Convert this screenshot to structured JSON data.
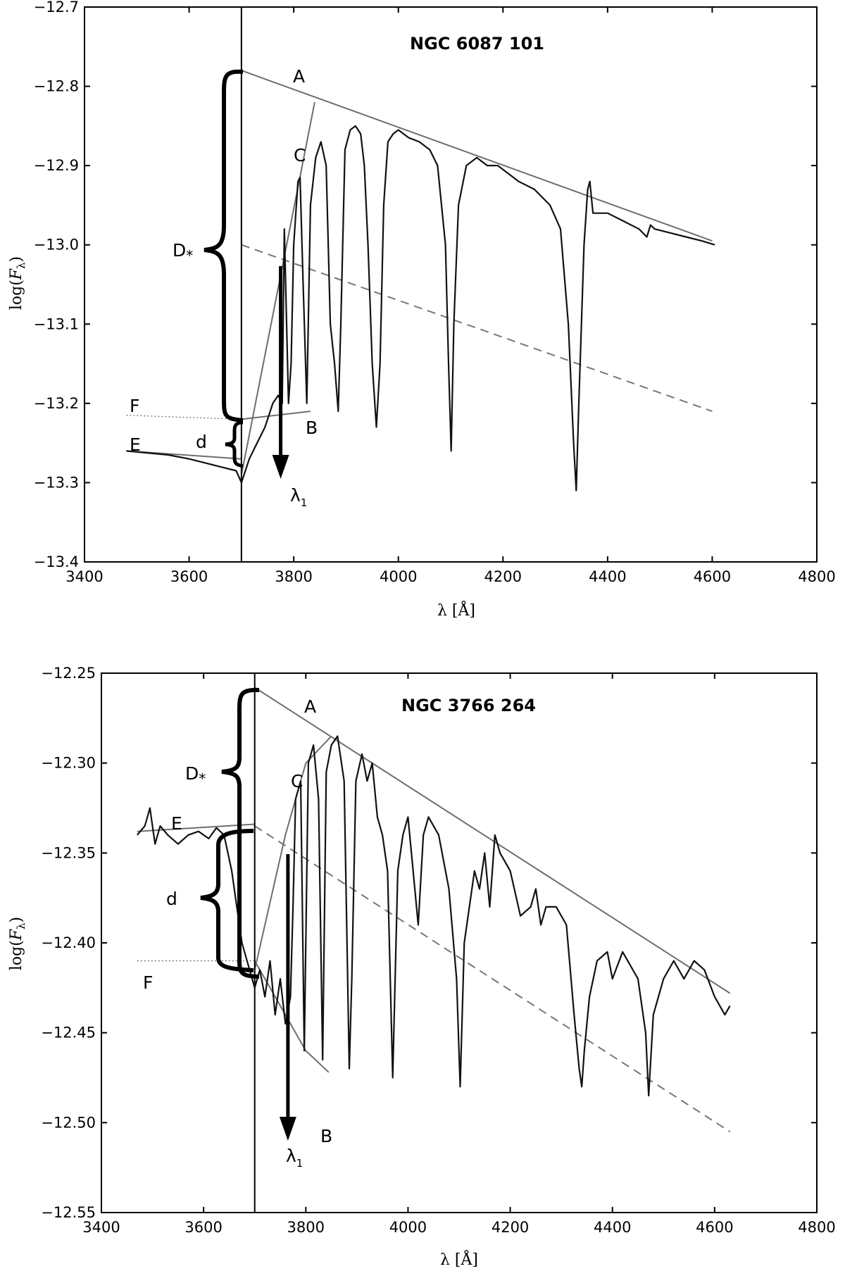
{
  "chart_data": [
    {
      "type": "line",
      "title": "NGC 6087 101",
      "xlabel": "λ [Å]",
      "ylabel": "log(F_λ)",
      "xlim": [
        3400,
        4800
      ],
      "ylim": [
        -13.4,
        -12.7
      ],
      "xticks": [
        3400,
        3600,
        3800,
        4000,
        4200,
        4400,
        4600,
        4800
      ],
      "xtick_labels": [
        "3400",
        "3600",
        "3800",
        "4000",
        "4200",
        "4400",
        "4600",
        "4800"
      ],
      "yticks": [
        -13.4,
        -13.3,
        -13.2,
        -13.1,
        -13.0,
        -12.9,
        -12.8,
        -12.7
      ],
      "ytick_labels": [
        "−13.4",
        "−13.3",
        "−13.2",
        "−13.1",
        "−13.0",
        "−12.9",
        "−12.8",
        "−12.7"
      ],
      "grid": false,
      "vline_x": 3700,
      "spectrum": {
        "x": [
          3480,
          3560,
          3600,
          3630,
          3660,
          3690,
          3700,
          3715,
          3730,
          3745,
          3760,
          3770,
          3778,
          3782,
          3790,
          3795,
          3800,
          3808,
          3812,
          3818,
          3825,
          3832,
          3842,
          3852,
          3862,
          3870,
          3878,
          3885,
          3890,
          3898,
          3908,
          3918,
          3928,
          3935,
          3942,
          3950,
          3958,
          3965,
          3972,
          3980,
          3990,
          4000,
          4010,
          4020,
          4040,
          4060,
          4075,
          4090,
          4096,
          4101,
          4106,
          4115,
          4130,
          4150,
          4170,
          4190,
          4210,
          4230,
          4260,
          4290,
          4310,
          4325,
          4335,
          4340,
          4345,
          4355,
          4362,
          4366,
          4372,
          4400,
          4430,
          4460,
          4475,
          4482,
          4490,
          4520,
          4550,
          4580,
          4605
        ],
        "y": [
          -13.26,
          -13.265,
          -13.27,
          -13.275,
          -13.28,
          -13.285,
          -13.3,
          -13.27,
          -13.25,
          -13.23,
          -13.2,
          -13.19,
          -13.2,
          -12.98,
          -13.2,
          -13.15,
          -13.0,
          -12.92,
          -12.915,
          -13.05,
          -13.2,
          -12.95,
          -12.89,
          -12.87,
          -12.9,
          -13.1,
          -13.15,
          -13.21,
          -13.1,
          -12.88,
          -12.855,
          -12.85,
          -12.86,
          -12.9,
          -13.0,
          -13.15,
          -13.23,
          -13.15,
          -12.95,
          -12.87,
          -12.86,
          -12.855,
          -12.86,
          -12.865,
          -12.87,
          -12.88,
          -12.9,
          -13.0,
          -13.15,
          -13.26,
          -13.1,
          -12.95,
          -12.9,
          -12.89,
          -12.9,
          -12.9,
          -12.91,
          -12.92,
          -12.93,
          -12.95,
          -12.98,
          -13.1,
          -13.25,
          -13.31,
          -13.2,
          -13.0,
          -12.93,
          -12.92,
          -12.96,
          -12.96,
          -12.97,
          -12.98,
          -12.99,
          -12.975,
          -12.98,
          -12.985,
          -12.99,
          -12.995,
          -13.0
        ]
      },
      "guide_lines": [
        {
          "label": "A",
          "x": [
            3700,
            4600
          ],
          "y": [
            -12.78,
            -12.995
          ],
          "style": "solid"
        },
        {
          "label": "",
          "x": [
            3700,
            4600
          ],
          "y": [
            -13.0,
            -13.21
          ],
          "style": "dashed"
        },
        {
          "label": "C",
          "x": [
            3700,
            3840
          ],
          "y": [
            -13.29,
            -12.82
          ],
          "style": "solid"
        },
        {
          "label": "B",
          "x": [
            3700,
            3832
          ],
          "y": [
            -13.22,
            -13.21
          ],
          "style": "solid"
        },
        {
          "label": "E",
          "x": [
            3480,
            3700
          ],
          "y": [
            -13.26,
            -13.27
          ],
          "style": "solid"
        },
        {
          "label": "F",
          "x": [
            3480,
            3700
          ],
          "y": [
            -13.215,
            -13.22
          ],
          "style": "dotted"
        }
      ],
      "annotations": {
        "title": "NGC 6087 101",
        "A": "A",
        "B": "B",
        "C": "C",
        "E": "E",
        "F": "F",
        "D_main": "D",
        "D_sub": "*",
        "d": "d",
        "lambda_main": "λ",
        "lambda_sub": "1"
      },
      "lambda1_x": 3775
    },
    {
      "type": "line",
      "title": "NGC 3766 264",
      "xlabel": "λ [Å]",
      "ylabel": "log(F_λ)",
      "xlim": [
        3400,
        4800
      ],
      "ylim": [
        -12.55,
        -12.25
      ],
      "xticks": [
        3400,
        3600,
        3800,
        4000,
        4200,
        4400,
        4600,
        4800
      ],
      "xtick_labels": [
        "3400",
        "3600",
        "3800",
        "4000",
        "4200",
        "4400",
        "4600",
        "4800"
      ],
      "yticks": [
        -12.55,
        -12.5,
        -12.45,
        -12.4,
        -12.35,
        -12.3,
        -12.25
      ],
      "ytick_labels": [
        "−12.55",
        "−12.50",
        "−12.45",
        "−12.40",
        "−12.35",
        "−12.30",
        "−12.25"
      ],
      "grid": false,
      "vline_x": 3700,
      "spectrum": {
        "x": [
          3470,
          3485,
          3495,
          3505,
          3515,
          3530,
          3550,
          3570,
          3590,
          3610,
          3625,
          3640,
          3655,
          3665,
          3675,
          3685,
          3695,
          3700,
          3710,
          3720,
          3730,
          3740,
          3750,
          3760,
          3770,
          3775,
          3780,
          3790,
          3797,
          3805,
          3815,
          3825,
          3833,
          3840,
          3850,
          3862,
          3875,
          3885,
          3890,
          3898,
          3910,
          3920,
          3930,
          3940,
          3950,
          3960,
          3970,
          3980,
          3990,
          4000,
          4010,
          4020,
          4030,
          4040,
          4060,
          4080,
          4095,
          4102,
          4110,
          4130,
          4140,
          4150,
          4160,
          4170,
          4180,
          4200,
          4220,
          4240,
          4250,
          4260,
          4270,
          4290,
          4310,
          4325,
          4335,
          4340,
          4345,
          4355,
          4370,
          4390,
          4400,
          4420,
          4450,
          4465,
          4471,
          4480,
          4500,
          4520,
          4540,
          4560,
          4580,
          4600,
          4620,
          4630
        ],
        "y": [
          -12.34,
          -12.335,
          -12.325,
          -12.345,
          -12.335,
          -12.34,
          -12.345,
          -12.34,
          -12.338,
          -12.342,
          -12.336,
          -12.34,
          -12.36,
          -12.38,
          -12.4,
          -12.41,
          -12.42,
          -12.425,
          -12.415,
          -12.43,
          -12.41,
          -12.44,
          -12.42,
          -12.445,
          -12.43,
          -12.38,
          -12.32,
          -12.31,
          -12.46,
          -12.3,
          -12.29,
          -12.32,
          -12.465,
          -12.305,
          -12.29,
          -12.285,
          -12.31,
          -12.47,
          -12.42,
          -12.31,
          -12.295,
          -12.31,
          -12.3,
          -12.33,
          -12.34,
          -12.36,
          -12.475,
          -12.36,
          -12.34,
          -12.33,
          -12.36,
          -12.39,
          -12.34,
          -12.33,
          -12.34,
          -12.37,
          -12.42,
          -12.48,
          -12.4,
          -12.36,
          -12.37,
          -12.35,
          -12.38,
          -12.34,
          -12.35,
          -12.36,
          -12.385,
          -12.38,
          -12.37,
          -12.39,
          -12.38,
          -12.38,
          -12.39,
          -12.44,
          -12.47,
          -12.48,
          -12.46,
          -12.43,
          -12.41,
          -12.405,
          -12.42,
          -12.405,
          -12.42,
          -12.45,
          -12.485,
          -12.44,
          -12.42,
          -12.41,
          -12.42,
          -12.41,
          -12.415,
          -12.43,
          -12.44,
          -12.435
        ]
      },
      "guide_lines": [
        {
          "label": "A",
          "x": [
            3700,
            4630
          ],
          "y": [
            -12.258,
            -12.428
          ],
          "style": "solid"
        },
        {
          "label": "",
          "x": [
            3700,
            4630
          ],
          "y": [
            -12.335,
            -12.505
          ],
          "style": "dashed"
        },
        {
          "label": "C",
          "x": [
            3700,
            3760,
            3800,
            3850
          ],
          "y": [
            -12.415,
            -12.34,
            -12.3,
            -12.285
          ],
          "style": "solid"
        },
        {
          "label": "B",
          "x": [
            3700,
            3760,
            3800,
            3845
          ],
          "y": [
            -12.41,
            -12.44,
            -12.46,
            -12.472
          ],
          "style": "solid"
        },
        {
          "label": "E",
          "x": [
            3470,
            3700
          ],
          "y": [
            -12.338,
            -12.334
          ],
          "style": "solid"
        },
        {
          "label": "F",
          "x": [
            3470,
            3700
          ],
          "y": [
            -12.41,
            -12.41
          ],
          "style": "dotted"
        }
      ],
      "annotations": {
        "title": "NGC 3766 264",
        "A": "A",
        "B": "B",
        "C": "C",
        "E": "E",
        "F": "F",
        "D_main": "D",
        "D_sub": "*",
        "d": "d",
        "lambda_main": "λ",
        "lambda_sub": "1"
      },
      "lambda1_x": 3765
    }
  ]
}
